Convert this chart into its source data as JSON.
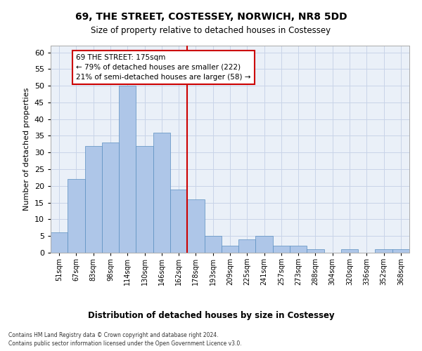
{
  "title": "69, THE STREET, COSTESSEY, NORWICH, NR8 5DD",
  "subtitle": "Size of property relative to detached houses in Costessey",
  "xlabel_bottom": "Distribution of detached houses by size in Costessey",
  "ylabel": "Number of detached properties",
  "footnote1": "Contains HM Land Registry data © Crown copyright and database right 2024.",
  "footnote2": "Contains public sector information licensed under the Open Government Licence v3.0.",
  "bin_labels": [
    "51sqm",
    "67sqm",
    "83sqm",
    "98sqm",
    "114sqm",
    "130sqm",
    "146sqm",
    "162sqm",
    "178sqm",
    "193sqm",
    "209sqm",
    "225sqm",
    "241sqm",
    "257sqm",
    "273sqm",
    "288sqm",
    "304sqm",
    "320sqm",
    "336sqm",
    "352sqm",
    "368sqm"
  ],
  "bar_values": [
    6,
    22,
    32,
    33,
    50,
    32,
    36,
    19,
    16,
    5,
    2,
    4,
    5,
    2,
    2,
    1,
    0,
    1,
    0,
    1,
    1
  ],
  "bar_color": "#aec6e8",
  "bar_edge_color": "#5a8fc0",
  "vline_x_index": 8,
  "vline_color": "#cc0000",
  "annotation_text": "69 THE STREET: 175sqm\n← 79% of detached houses are smaller (222)\n21% of semi-detached houses are larger (58) →",
  "annotation_box_color": "#ffffff",
  "annotation_box_edge_color": "#cc0000",
  "ylim": [
    0,
    62
  ],
  "yticks": [
    0,
    5,
    10,
    15,
    20,
    25,
    30,
    35,
    40,
    45,
    50,
    55,
    60
  ],
  "grid_color": "#c8d4e8",
  "background_color": "#eaf0f8",
  "fig_bg_color": "#ffffff",
  "title_fontsize": 10,
  "subtitle_fontsize": 8.5,
  "ylabel_fontsize": 8,
  "xtick_fontsize": 7,
  "ytick_fontsize": 8,
  "annotation_fontsize": 7.5,
  "xlabel_bottom_fontsize": 8.5,
  "footnote_fontsize": 5.5
}
